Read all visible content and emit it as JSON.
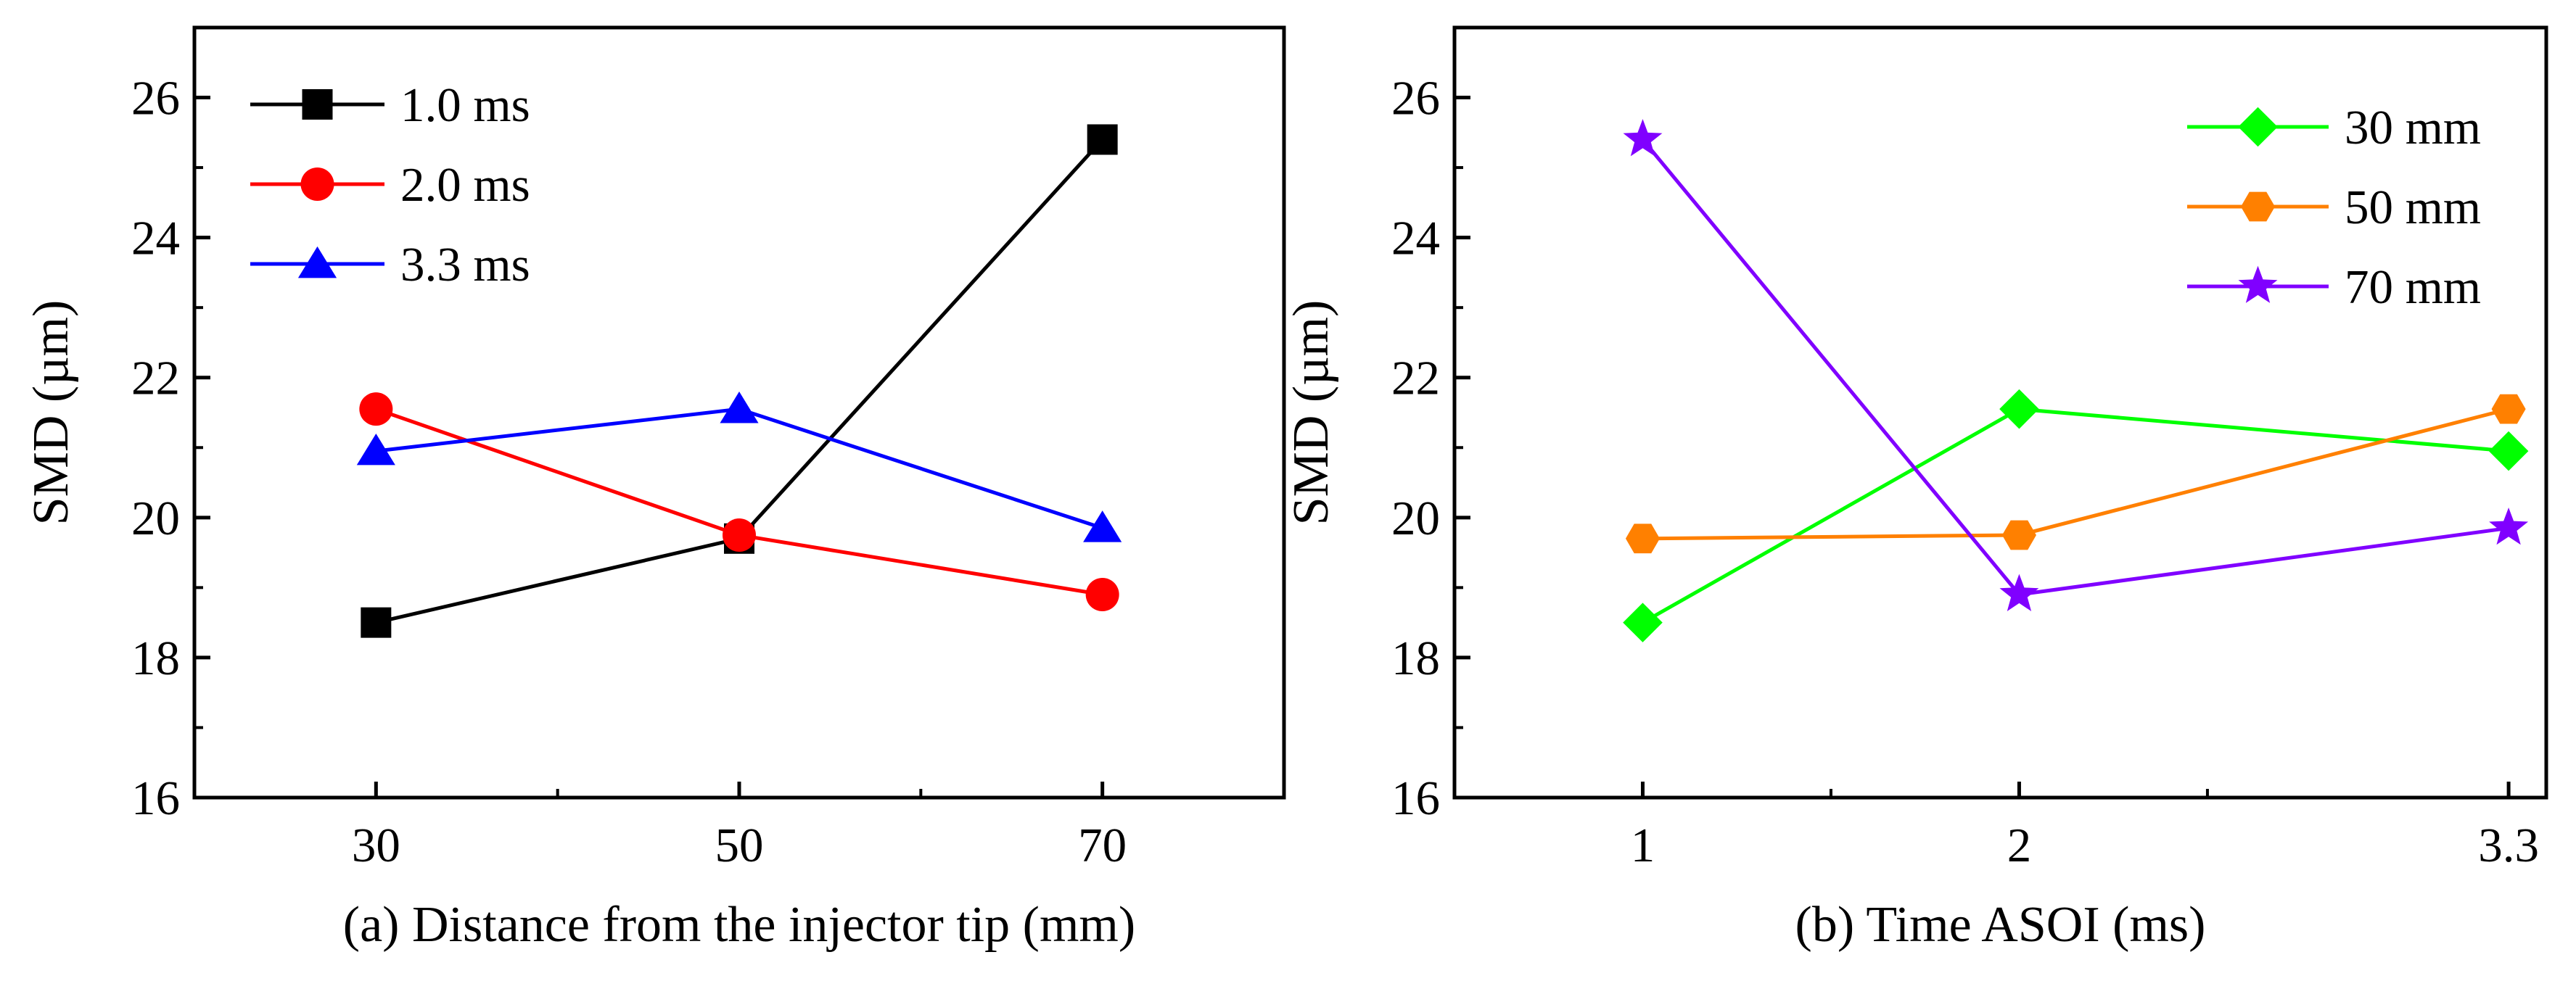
{
  "chart_data": [
    {
      "type": "line",
      "panel": "a",
      "title": "",
      "xlabel": "(a) Distance from the injector tip (mm)",
      "ylabel": "SMD (µm)",
      "x": [
        30,
        50,
        70
      ],
      "xticks": [
        "30",
        "50",
        "70"
      ],
      "xlim": [
        20,
        80
      ],
      "ylim": [
        16,
        27
      ],
      "yticks": [
        "16",
        "18",
        "20",
        "22",
        "24",
        "26"
      ],
      "grid": false,
      "legend": "top-left",
      "series": [
        {
          "name": "1.0 ms",
          "marker": "square",
          "color": "#000000",
          "values": [
            18.5,
            19.7,
            25.4
          ]
        },
        {
          "name": "2.0 ms",
          "marker": "circle",
          "color": "#ff0000",
          "values": [
            21.55,
            19.75,
            18.9
          ]
        },
        {
          "name": "3.3 ms",
          "marker": "triangle",
          "color": "#0000ff",
          "values": [
            20.95,
            21.55,
            19.85
          ]
        }
      ]
    },
    {
      "type": "line",
      "panel": "b",
      "title": "",
      "xlabel": "(b) Time ASOI (ms)",
      "ylabel": "SMD (µm)",
      "x": [
        1,
        2,
        3.3
      ],
      "xticks": [
        "1",
        "2",
        "3.3"
      ],
      "xlim": [
        0.5,
        3.4
      ],
      "ylim": [
        16,
        27
      ],
      "yticks": [
        "16",
        "18",
        "20",
        "22",
        "24",
        "26"
      ],
      "grid": false,
      "legend": "top-right",
      "series": [
        {
          "name": "30 mm",
          "marker": "diamond",
          "color": "#00ff00",
          "values": [
            18.5,
            21.55,
            20.95
          ]
        },
        {
          "name": "50 mm",
          "marker": "hexagon",
          "color": "#ff8000",
          "values": [
            19.7,
            19.75,
            21.55
          ]
        },
        {
          "name": "70 mm",
          "marker": "star",
          "color": "#8000ff",
          "values": [
            25.4,
            18.9,
            19.85
          ]
        }
      ]
    }
  ]
}
